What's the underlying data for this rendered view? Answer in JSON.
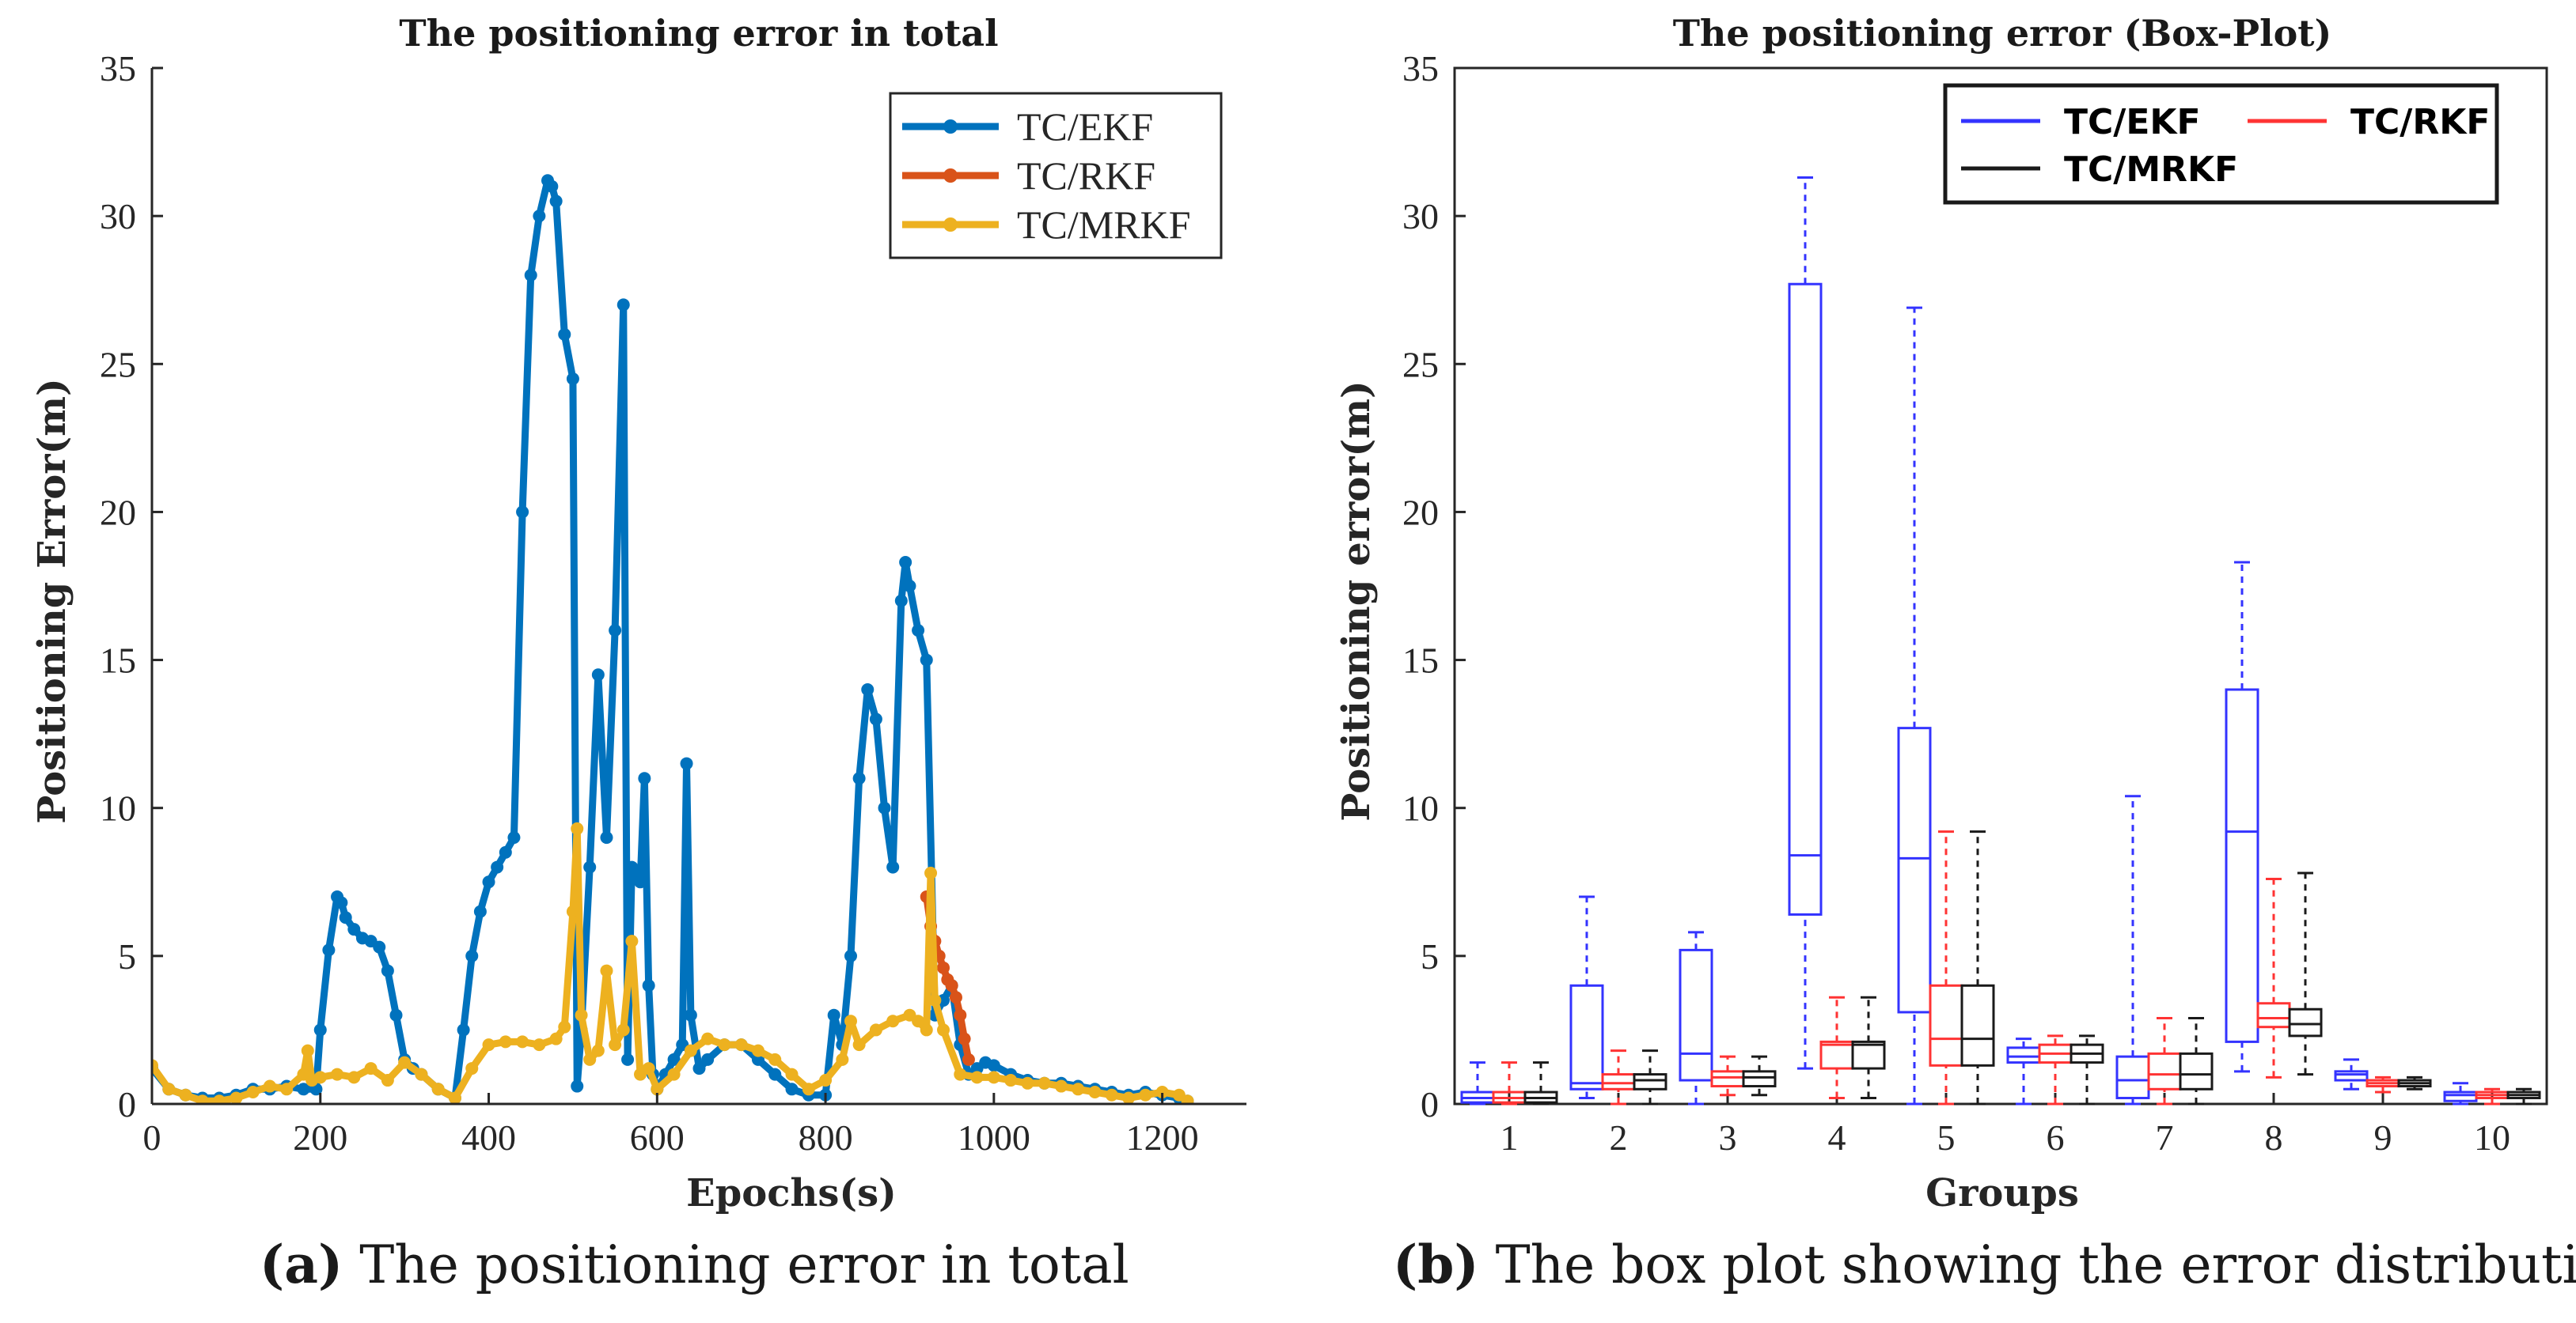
{
  "captions": {
    "a_tag": "(a)",
    "a_text": " The positioning error in total",
    "b_tag": "(b)",
    "b_text": " The box plot showing the error distribution"
  },
  "chart_data": [
    {
      "type": "line",
      "title": "The positioning error in total",
      "xlabel": "Epochs(s)",
      "ylabel": "Positioning Error(m)",
      "xlim": [
        0,
        1300
      ],
      "ylim": [
        0,
        35
      ],
      "xticks": [
        0,
        200,
        400,
        600,
        800,
        1000,
        1200
      ],
      "yticks": [
        0,
        5,
        10,
        15,
        20,
        25,
        30,
        35
      ],
      "legend": "top-right",
      "series": [
        {
          "name": "TC/EKF",
          "color": "#0072BD",
          "x": [
            0,
            20,
            40,
            60,
            80,
            100,
            120,
            140,
            160,
            180,
            195,
            200,
            210,
            220,
            225,
            230,
            240,
            250,
            260,
            270,
            280,
            290,
            300,
            310,
            320,
            340,
            360,
            370,
            380,
            390,
            400,
            410,
            420,
            430,
            440,
            450,
            460,
            470,
            475,
            480,
            490,
            500,
            505,
            510,
            520,
            530,
            540,
            550,
            560,
            565,
            570,
            580,
            585,
            590,
            595,
            600,
            610,
            620,
            630,
            635,
            640,
            650,
            660,
            680,
            700,
            720,
            740,
            760,
            780,
            800,
            810,
            820,
            830,
            840,
            850,
            860,
            870,
            880,
            890,
            895,
            900,
            910,
            920,
            930,
            940,
            950,
            960,
            970,
            980,
            990,
            1000,
            1020,
            1040,
            1060,
            1080,
            1100,
            1120,
            1140,
            1160,
            1180,
            1200,
            1220,
            1230
          ],
          "y": [
            1.2,
            0.5,
            0.3,
            0.2,
            0.2,
            0.3,
            0.5,
            0.5,
            0.6,
            0.5,
            0.5,
            2.5,
            5.2,
            7.0,
            6.8,
            6.3,
            5.9,
            5.6,
            5.5,
            5.3,
            4.5,
            3.0,
            1.5,
            1.2,
            1.0,
            0.5,
            0.2,
            2.5,
            5.0,
            6.5,
            7.5,
            8.0,
            8.5,
            9.0,
            20.0,
            28.0,
            30.0,
            31.2,
            31.0,
            30.5,
            26.0,
            24.5,
            0.6,
            2.5,
            8.0,
            14.5,
            9.0,
            16.0,
            27.0,
            1.5,
            8.0,
            7.5,
            11.0,
            4.0,
            1.0,
            0.5,
            1.0,
            1.5,
            2.0,
            11.5,
            3.0,
            1.2,
            1.5,
            2.0,
            2.0,
            1.5,
            1.0,
            0.5,
            0.3,
            0.3,
            3.0,
            2.0,
            5.0,
            11.0,
            14.0,
            13.0,
            10.0,
            8.0,
            17.0,
            18.3,
            17.5,
            16.0,
            15.0,
            3.0,
            3.5,
            4.0,
            2.0,
            1.0,
            1.2,
            1.4,
            1.3,
            1.0,
            0.8,
            0.7,
            0.7,
            0.6,
            0.5,
            0.4,
            0.3,
            0.4,
            0.3,
            0.2,
            0.1
          ]
        },
        {
          "name": "TC/RKF",
          "color": "#D95319",
          "x": [
            920,
            925,
            930,
            935,
            940,
            945,
            950,
            955,
            960,
            965,
            970
          ],
          "y": [
            7.0,
            6.0,
            5.5,
            5.0,
            4.6,
            4.2,
            4.0,
            3.6,
            3.0,
            2.2,
            1.5
          ]
        },
        {
          "name": "TC/MRKF",
          "color": "#EDB120",
          "x": [
            0,
            20,
            40,
            60,
            80,
            100,
            120,
            140,
            160,
            180,
            185,
            190,
            200,
            220,
            240,
            260,
            280,
            300,
            320,
            340,
            360,
            380,
            400,
            420,
            440,
            460,
            480,
            490,
            500,
            505,
            510,
            520,
            530,
            540,
            550,
            560,
            570,
            580,
            590,
            600,
            620,
            640,
            660,
            680,
            700,
            720,
            740,
            760,
            780,
            800,
            820,
            830,
            840,
            860,
            880,
            900,
            910,
            920,
            925,
            930,
            940,
            960,
            980,
            1000,
            1020,
            1040,
            1060,
            1080,
            1100,
            1120,
            1140,
            1160,
            1180,
            1200,
            1220,
            1230
          ],
          "y": [
            1.3,
            0.5,
            0.3,
            0.1,
            0.1,
            0.2,
            0.4,
            0.6,
            0.5,
            1.0,
            1.8,
            0.8,
            0.9,
            1.0,
            0.9,
            1.2,
            0.8,
            1.4,
            1.0,
            0.5,
            0.2,
            1.2,
            2.0,
            2.1,
            2.1,
            2.0,
            2.2,
            2.6,
            6.5,
            9.3,
            3.0,
            1.5,
            1.8,
            4.5,
            2.0,
            2.5,
            5.5,
            1.0,
            1.2,
            0.5,
            1.0,
            1.8,
            2.2,
            2.0,
            2.0,
            1.8,
            1.5,
            1.0,
            0.5,
            0.8,
            1.5,
            2.8,
            2.0,
            2.5,
            2.8,
            3.0,
            2.8,
            2.5,
            7.8,
            3.5,
            2.5,
            1.0,
            0.9,
            0.9,
            0.8,
            0.7,
            0.7,
            0.6,
            0.5,
            0.4,
            0.3,
            0.2,
            0.3,
            0.4,
            0.3,
            0.1
          ]
        }
      ]
    },
    {
      "type": "box",
      "title": "The positioning error (Box-Plot)",
      "xlabel": "Groups",
      "ylabel": "Positioning error(m)",
      "ylim": [
        0,
        35
      ],
      "yticks": [
        0,
        5,
        10,
        15,
        20,
        25,
        30,
        35
      ],
      "categories": [
        "1",
        "2",
        "3",
        "4",
        "5",
        "6",
        "7",
        "8",
        "9",
        "10"
      ],
      "legend": "top-right",
      "series": [
        {
          "name": "TC/EKF",
          "color": "#3333FF",
          "boxes": [
            [
              0.0,
              0.05,
              0.2,
              0.4,
              1.4
            ],
            [
              0.2,
              0.5,
              0.7,
              4.0,
              7.0
            ],
            [
              0.0,
              0.8,
              1.7,
              5.2,
              5.8
            ],
            [
              1.2,
              6.4,
              8.4,
              27.7,
              31.3
            ],
            [
              0.0,
              3.1,
              8.3,
              12.7,
              26.9
            ],
            [
              0.0,
              1.4,
              1.6,
              1.9,
              2.2
            ],
            [
              0.0,
              0.2,
              0.8,
              1.6,
              10.4
            ],
            [
              1.1,
              2.1,
              9.2,
              14.0,
              18.3
            ],
            [
              0.5,
              0.8,
              1.0,
              1.1,
              1.5
            ],
            [
              0.0,
              0.1,
              0.3,
              0.4,
              0.7
            ]
          ]
        },
        {
          "name": "TC/RKF",
          "color": "#FF3333",
          "boxes": [
            [
              0.0,
              0.05,
              0.2,
              0.4,
              1.4
            ],
            [
              0.0,
              0.5,
              0.7,
              1.0,
              1.8
            ],
            [
              0.3,
              0.6,
              0.9,
              1.1,
              1.6
            ],
            [
              0.2,
              1.2,
              2.0,
              2.1,
              3.6
            ],
            [
              0.0,
              1.3,
              2.2,
              4.0,
              9.2
            ],
            [
              0.0,
              1.4,
              1.7,
              2.0,
              2.3
            ],
            [
              0.0,
              0.5,
              1.0,
              1.7,
              2.9
            ],
            [
              0.9,
              2.6,
              2.9,
              3.4,
              7.6
            ],
            [
              0.4,
              0.6,
              0.7,
              0.8,
              0.9
            ],
            [
              0.0,
              0.2,
              0.3,
              0.4,
              0.5
            ]
          ]
        },
        {
          "name": "TC/MRKF",
          "color": "#1a1a1a",
          "boxes": [
            [
              0.0,
              0.05,
              0.2,
              0.4,
              1.4
            ],
            [
              0.0,
              0.5,
              0.8,
              1.0,
              1.8
            ],
            [
              0.3,
              0.6,
              0.9,
              1.1,
              1.6
            ],
            [
              0.2,
              1.2,
              2.0,
              2.1,
              3.6
            ],
            [
              0.0,
              1.3,
              2.2,
              4.0,
              9.2
            ],
            [
              0.0,
              1.4,
              1.7,
              2.0,
              2.3
            ],
            [
              0.0,
              0.5,
              1.0,
              1.7,
              2.9
            ],
            [
              1.0,
              2.3,
              2.7,
              3.2,
              7.8
            ],
            [
              0.5,
              0.6,
              0.7,
              0.8,
              0.9
            ],
            [
              0.0,
              0.2,
              0.3,
              0.4,
              0.5
            ]
          ]
        }
      ]
    }
  ]
}
